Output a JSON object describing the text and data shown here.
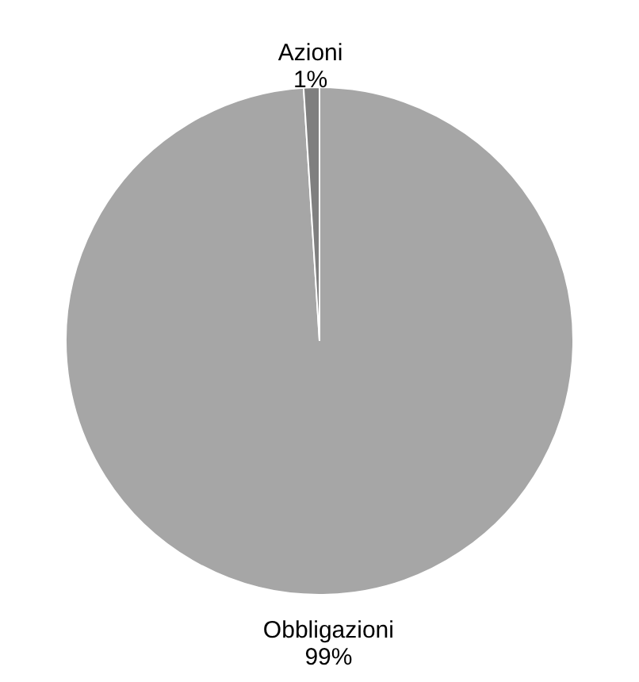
{
  "chart_data": {
    "type": "pie",
    "categories": [
      "Obbligazioni",
      "Azioni"
    ],
    "values": [
      99,
      1
    ],
    "value_labels": [
      "99%",
      "1%"
    ],
    "colors": [
      "#a6a6a6",
      "#7f7f7f"
    ]
  }
}
